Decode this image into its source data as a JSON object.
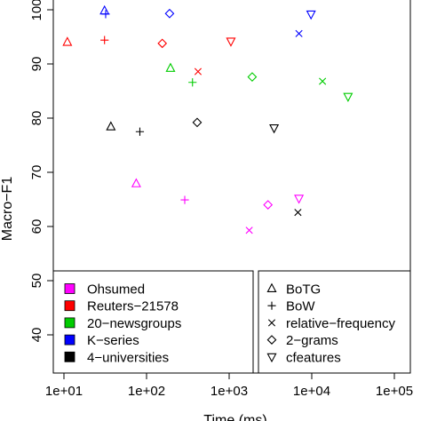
{
  "chart_data": {
    "type": "scatter",
    "title": "",
    "xlabel": "Time (ms)",
    "ylabel": "Macro−F1",
    "x_scale": "log",
    "xlim": [
      10,
      100000
    ],
    "ylim": [
      33,
      100
    ],
    "grid": false,
    "x_ticks": [
      {
        "value": 10,
        "label": "1e+01"
      },
      {
        "value": 100,
        "label": "1e+02"
      },
      {
        "value": 1000,
        "label": "1e+03"
      },
      {
        "value": 10000,
        "label": "1e+04"
      },
      {
        "value": 100000,
        "label": "1e+05"
      }
    ],
    "y_ticks": [
      {
        "value": 40,
        "label": "40"
      },
      {
        "value": 50,
        "label": "50"
      },
      {
        "value": 60,
        "label": "60"
      },
      {
        "value": 70,
        "label": "70"
      },
      {
        "value": 80,
        "label": "80"
      },
      {
        "value": 90,
        "label": "90"
      },
      {
        "value": 100,
        "label": "100"
      }
    ],
    "datasets_legend": {
      "placement": "bottom-left",
      "entries": [
        {
          "name": "Ohsumed",
          "color": "#ff00ff"
        },
        {
          "name": "Reuters−21578",
          "color": "#ff0000"
        },
        {
          "name": "20−newsgroups",
          "color": "#00cc00"
        },
        {
          "name": "K−series",
          "color": "#0000ff"
        },
        {
          "name": "4−universities",
          "color": "#000000"
        }
      ]
    },
    "methods_legend": {
      "placement": "bottom-right",
      "entries": [
        {
          "name": "BoTG",
          "symbol": "triangle-up"
        },
        {
          "name": "BoW",
          "symbol": "plus"
        },
        {
          "name": "relative−frequency",
          "symbol": "cross"
        },
        {
          "name": "2−grams",
          "symbol": "diamond"
        },
        {
          "name": "cfeatures",
          "symbol": "triangle-down"
        }
      ]
    },
    "points": [
      {
        "dataset": "K−series",
        "method": "BoTG",
        "x": 31,
        "y": 99.8
      },
      {
        "dataset": "K−series",
        "method": "BoW",
        "x": 32,
        "y": 99.2
      },
      {
        "dataset": "K−series",
        "method": "2−grams",
        "x": 190,
        "y": 99.3
      },
      {
        "dataset": "K−series",
        "method": "relative−frequency",
        "x": 7000,
        "y": 95.6
      },
      {
        "dataset": "K−series",
        "method": "cfeatures",
        "x": 9800,
        "y": 99.2
      },
      {
        "dataset": "Reuters−21578",
        "method": "BoTG",
        "x": 11,
        "y": 94.0
      },
      {
        "dataset": "Reuters−21578",
        "method": "BoW",
        "x": 31,
        "y": 94.4
      },
      {
        "dataset": "Reuters−21578",
        "method": "2−grams",
        "x": 155,
        "y": 93.8
      },
      {
        "dataset": "Reuters−21578",
        "method": "relative−frequency",
        "x": 420,
        "y": 88.6
      },
      {
        "dataset": "Reuters−21578",
        "method": "cfeatures",
        "x": 1050,
        "y": 94.2
      },
      {
        "dataset": "20−newsgroups",
        "method": "BoTG",
        "x": 195,
        "y": 89.2
      },
      {
        "dataset": "20−newsgroups",
        "method": "BoW",
        "x": 360,
        "y": 86.6
      },
      {
        "dataset": "20−newsgroups",
        "method": "2−grams",
        "x": 1900,
        "y": 87.6
      },
      {
        "dataset": "20−newsgroups",
        "method": "relative−frequency",
        "x": 13500,
        "y": 86.8
      },
      {
        "dataset": "20−newsgroups",
        "method": "cfeatures",
        "x": 27500,
        "y": 84.0
      },
      {
        "dataset": "4−universities",
        "method": "BoTG",
        "x": 37,
        "y": 78.4
      },
      {
        "dataset": "4−universities",
        "method": "BoW",
        "x": 83,
        "y": 77.5
      },
      {
        "dataset": "4−universities",
        "method": "2−grams",
        "x": 410,
        "y": 79.2
      },
      {
        "dataset": "4−universities",
        "method": "cfeatures",
        "x": 3500,
        "y": 78.2
      },
      {
        "dataset": "4−universities",
        "method": "relative−frequency",
        "x": 6800,
        "y": 62.6
      },
      {
        "dataset": "Ohsumed",
        "method": "BoTG",
        "x": 75,
        "y": 67.9
      },
      {
        "dataset": "Ohsumed",
        "method": "BoW",
        "x": 290,
        "y": 64.9
      },
      {
        "dataset": "Ohsumed",
        "method": "relative−frequency",
        "x": 1750,
        "y": 59.3
      },
      {
        "dataset": "Ohsumed",
        "method": "2−grams",
        "x": 2950,
        "y": 64.0
      },
      {
        "dataset": "Ohsumed",
        "method": "cfeatures",
        "x": 7000,
        "y": 65.2
      }
    ]
  }
}
